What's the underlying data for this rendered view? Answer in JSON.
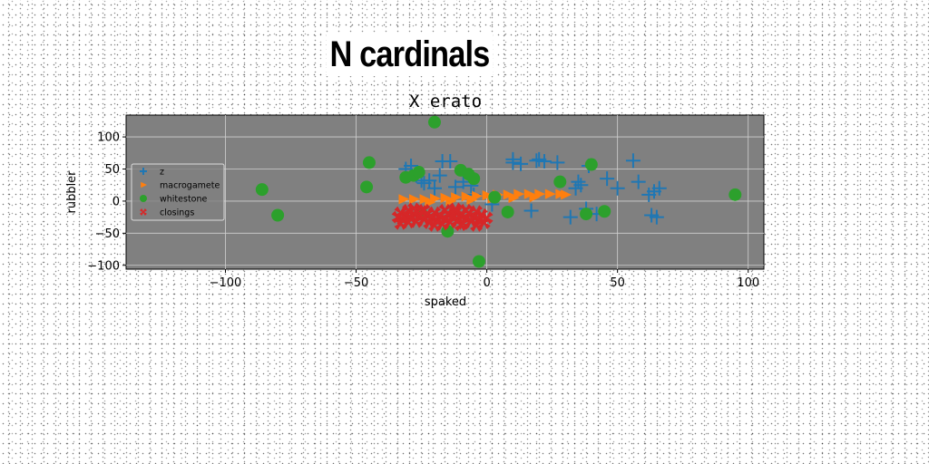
{
  "suptitle": "N cardinals",
  "chart_data": {
    "type": "scatter",
    "title": "X erato",
    "xlabel": "spaked",
    "ylabel": "rubbler",
    "xlim": [
      -138,
      106
    ],
    "ylim": [
      -106,
      134
    ],
    "xticks": [
      -100,
      -50,
      0,
      50,
      100
    ],
    "yticks": [
      -100,
      -50,
      0,
      50,
      100
    ],
    "grid": true,
    "legend": "upper-left",
    "series": [
      {
        "name": "z",
        "marker": "plus",
        "color": "#1f77b4",
        "points": [
          [
            -31,
            50
          ],
          [
            -29,
            55
          ],
          [
            -27,
            40
          ],
          [
            -25,
            32
          ],
          [
            -24,
            28
          ],
          [
            -22,
            32
          ],
          [
            -20,
            20
          ],
          [
            -18,
            40
          ],
          [
            -17,
            62
          ],
          [
            -14,
            62
          ],
          [
            -12,
            22
          ],
          [
            -9,
            30
          ],
          [
            -6,
            24
          ],
          [
            -5,
            10
          ],
          [
            2,
            -5
          ],
          [
            10,
            65
          ],
          [
            10,
            60
          ],
          [
            13,
            58
          ],
          [
            17,
            -15
          ],
          [
            19,
            63
          ],
          [
            20,
            65
          ],
          [
            22,
            62
          ],
          [
            27,
            60
          ],
          [
            32,
            -25
          ],
          [
            34,
            20
          ],
          [
            35,
            30
          ],
          [
            36,
            25
          ],
          [
            38,
            -12
          ],
          [
            39,
            55
          ],
          [
            42,
            -20
          ],
          [
            46,
            35
          ],
          [
            50,
            20
          ],
          [
            56,
            63
          ],
          [
            58,
            30
          ],
          [
            62,
            10
          ],
          [
            63,
            -22
          ],
          [
            64,
            15
          ],
          [
            65,
            -25
          ],
          [
            66,
            20
          ]
        ]
      },
      {
        "name": "macrogamete",
        "marker": "triangle",
        "color": "#ff7f0e",
        "points": [
          [
            -32,
            3
          ],
          [
            -28,
            3
          ],
          [
            -24,
            3
          ],
          [
            -20,
            4
          ],
          [
            -16,
            5
          ],
          [
            -12,
            6
          ],
          [
            -8,
            7
          ],
          [
            -4,
            8
          ],
          [
            0,
            9
          ],
          [
            4,
            10
          ],
          [
            8,
            10
          ],
          [
            12,
            11
          ],
          [
            16,
            11
          ],
          [
            20,
            11
          ],
          [
            24,
            11
          ],
          [
            28,
            11
          ],
          [
            30,
            10
          ],
          [
            -22,
            -2
          ],
          [
            -14,
            0
          ],
          [
            -6,
            2
          ],
          [
            2,
            4
          ],
          [
            10,
            5
          ],
          [
            18,
            6
          ]
        ]
      },
      {
        "name": "whitestone",
        "marker": "circle",
        "color": "#2ca02c",
        "points": [
          [
            -20,
            123
          ],
          [
            -45,
            60
          ],
          [
            -86,
            18
          ],
          [
            -80,
            -22
          ],
          [
            -46,
            22
          ],
          [
            -31,
            37
          ],
          [
            -28,
            40
          ],
          [
            -26,
            45
          ],
          [
            -25,
            -20
          ],
          [
            -15,
            -47
          ],
          [
            -10,
            48
          ],
          [
            -7,
            42
          ],
          [
            -5,
            35
          ],
          [
            3,
            6
          ],
          [
            -3,
            -94
          ],
          [
            8,
            -17
          ],
          [
            28,
            30
          ],
          [
            38,
            -20
          ],
          [
            40,
            57
          ],
          [
            45,
            -16
          ],
          [
            95,
            10
          ]
        ]
      },
      {
        "name": "closings",
        "marker": "x",
        "color": "#d62728",
        "points": [
          [
            -34,
            -25
          ],
          [
            -33,
            -18
          ],
          [
            -32,
            -30
          ],
          [
            -31,
            -22
          ],
          [
            -30,
            -14
          ],
          [
            -29,
            -27
          ],
          [
            -28,
            -19
          ],
          [
            -27,
            -32
          ],
          [
            -26,
            -24
          ],
          [
            -25,
            -16
          ],
          [
            -24,
            -29
          ],
          [
            -23,
            -21
          ],
          [
            -22,
            -34
          ],
          [
            -21,
            -26
          ],
          [
            -20,
            -18
          ],
          [
            -19,
            -31
          ],
          [
            -18,
            -23
          ],
          [
            -17,
            -36
          ],
          [
            -16,
            -28
          ],
          [
            -15,
            -20
          ],
          [
            -14,
            -33
          ],
          [
            -13,
            -25
          ],
          [
            -12,
            -17
          ],
          [
            -11,
            -30
          ],
          [
            -10,
            -22
          ],
          [
            -9,
            -35
          ],
          [
            -8,
            -27
          ],
          [
            -7,
            -19
          ],
          [
            -6,
            -32
          ],
          [
            -5,
            -24
          ],
          [
            -4,
            -16
          ],
          [
            -3,
            -29
          ],
          [
            -2,
            -21
          ],
          [
            -1,
            -34
          ],
          [
            0,
            -26
          ],
          [
            -33,
            -35
          ],
          [
            -28,
            -12
          ],
          [
            -20,
            -38
          ],
          [
            -12,
            -12
          ],
          [
            -4,
            -38
          ],
          [
            -24,
            -14
          ],
          [
            -16,
            -14
          ],
          [
            -8,
            -14
          ],
          [
            -30,
            -33
          ],
          [
            -10,
            -37
          ]
        ]
      }
    ]
  }
}
